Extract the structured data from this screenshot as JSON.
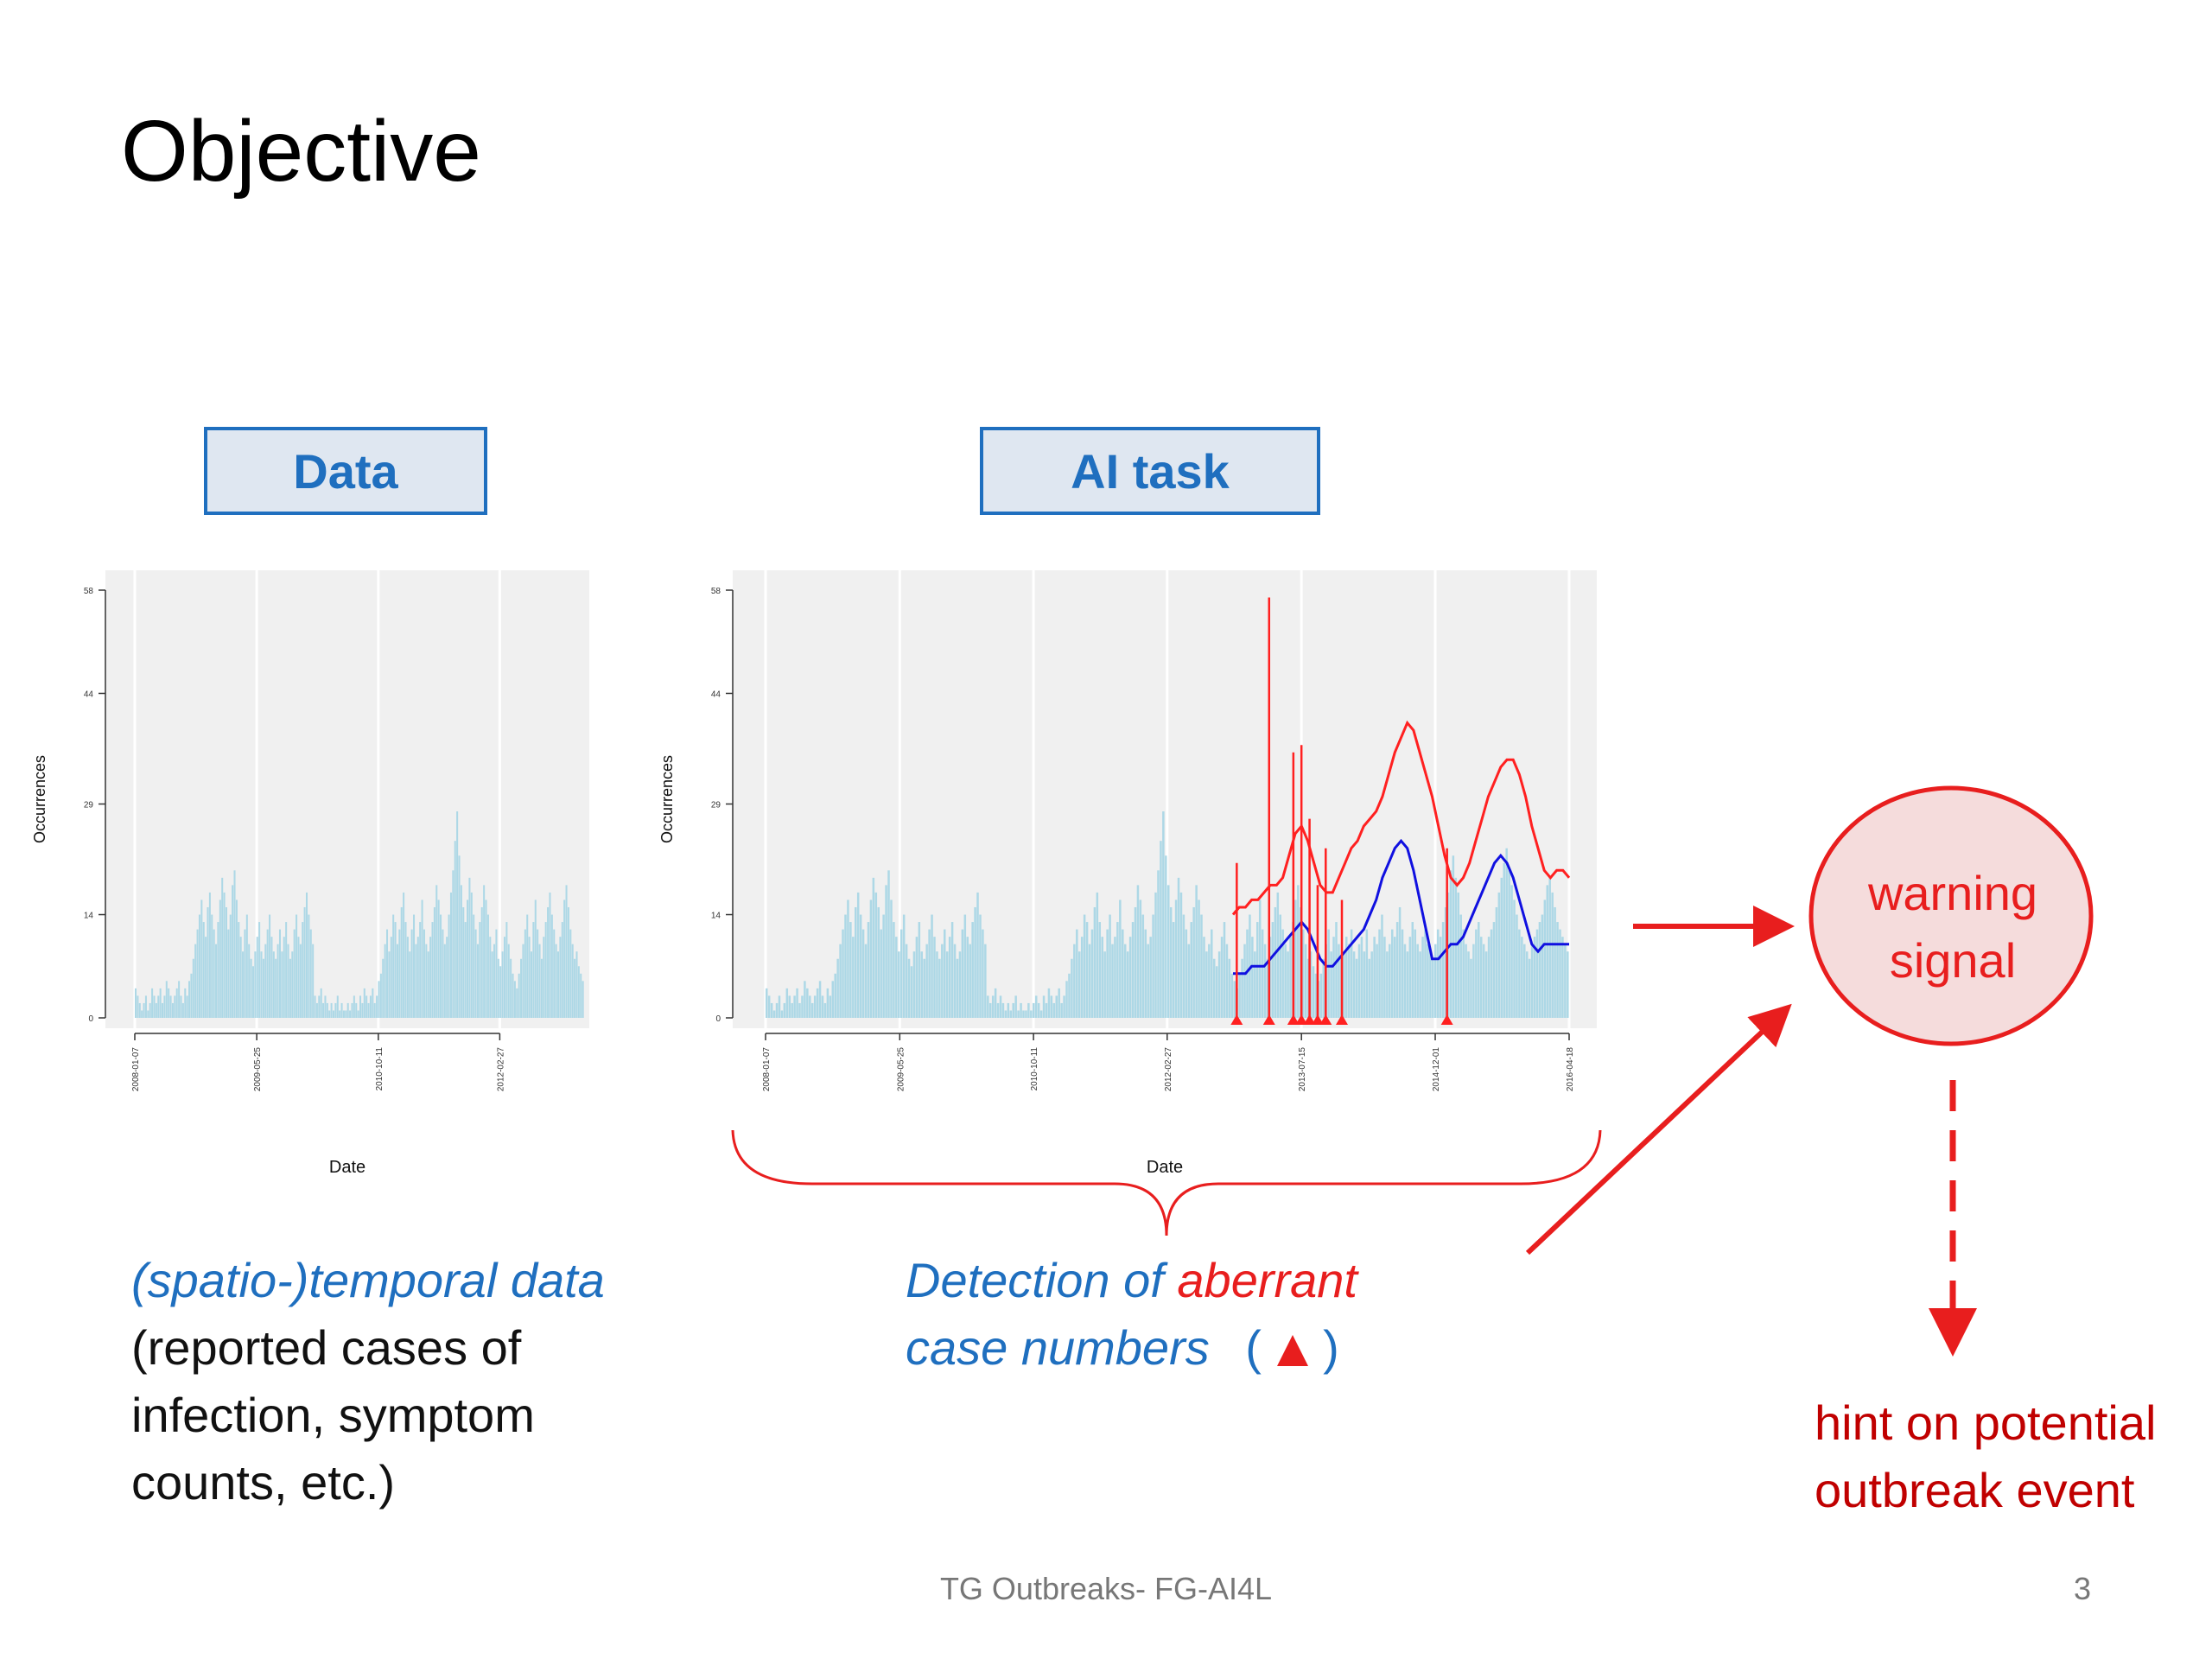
{
  "slide": {
    "title": "Objective",
    "data_label": "Data",
    "ai_label": "AI task",
    "left_caption_italic": "(spatio-)temporal data",
    "left_caption_lines": [
      "(reported cases of",
      "infection, symptom",
      "counts, etc.)"
    ],
    "mid_caption_part1": "Detection of ",
    "mid_caption_part2": "aberrant",
    "mid_caption_line2": "case numbers",
    "mid_caption_paren_open": "(",
    "mid_caption_paren_close": ")",
    "warning_line1": "warning",
    "warning_line2": "signal",
    "hint_line1": "hint on potential",
    "hint_line2": "outbreak event",
    "footer": "TG Outbreaks- FG-AI4L",
    "page_number": "3"
  },
  "colors": {
    "accent_blue": "#1f6fbf",
    "alert_red": "#e81e1e",
    "bar_color": "#add8e6",
    "threshold_red": "#ff2020",
    "expected_blue": "#1010e0",
    "panel_bg": "#f0f0f0"
  },
  "chart_data": [
    {
      "type": "bar",
      "xlabel": "Date",
      "ylabel": "Occurrences",
      "yticks": [
        0,
        14,
        29,
        44,
        58
      ],
      "ylim": [
        0,
        58
      ],
      "xticks": [
        "2008-01-07",
        "2009-05-25",
        "2010-10-11",
        "2012-02-27"
      ],
      "x_range": [
        "2008-01-07",
        "2013-02-11"
      ],
      "grid": true,
      "series": [
        {
          "values": [
            4,
            3,
            2,
            1,
            2,
            3,
            1,
            2,
            4,
            3,
            2,
            3,
            4,
            2,
            3,
            5,
            4,
            3,
            2,
            3,
            4,
            5,
            3,
            2,
            4,
            3,
            5,
            6,
            8,
            10,
            12,
            14,
            16,
            13,
            11,
            15,
            17,
            14,
            12,
            10,
            13,
            16,
            19,
            17,
            15,
            12,
            14,
            18,
            20,
            16,
            13,
            11,
            9,
            12,
            14,
            10,
            8,
            7,
            9,
            11,
            13,
            9,
            8,
            10,
            12,
            14,
            11,
            9,
            8,
            10,
            12,
            9,
            11,
            13,
            10,
            8,
            9,
            12,
            14,
            11,
            10,
            13,
            15,
            17,
            14,
            12,
            10,
            3,
            2,
            3,
            4,
            2,
            3,
            2,
            1,
            2,
            1,
            2,
            3,
            1,
            2,
            1,
            1,
            2,
            1,
            2,
            3,
            2,
            1,
            3,
            2,
            4,
            3,
            2,
            3,
            4,
            2,
            3,
            5,
            6,
            8,
            10,
            12,
            9,
            11,
            14,
            13,
            10,
            12,
            15,
            17,
            13,
            11,
            9,
            12,
            14,
            10,
            11,
            13,
            16,
            12,
            10,
            9,
            11,
            13,
            15,
            18,
            16,
            14,
            12,
            10,
            11,
            14,
            17,
            20,
            24,
            28,
            22,
            18,
            15,
            13,
            16,
            19,
            17,
            14,
            12,
            10,
            13,
            15,
            18,
            16,
            14,
            11,
            9,
            10,
            12,
            8,
            7,
            9,
            11,
            13,
            10,
            8,
            6,
            5,
            4,
            6,
            8,
            10,
            12,
            14,
            11,
            9,
            13,
            16,
            12,
            10,
            8,
            11,
            13,
            15,
            17,
            14,
            12,
            10,
            9,
            11,
            13,
            16,
            18,
            15,
            12,
            10,
            8,
            9,
            7,
            6,
            5
          ]
        }
      ]
    },
    {
      "type": "line",
      "xlabel": "Date",
      "ylabel": "Occurrences",
      "yticks": [
        0,
        14,
        29,
        44,
        58
      ],
      "ylim": [
        0,
        58
      ],
      "xticks": [
        "2008-01-07",
        "2009-05-25",
        "2010-10-11",
        "2012-02-27",
        "2013-07-15",
        "2014-12-01",
        "2016-04-18"
      ],
      "x_range": [
        "2008-01-07",
        "2016-04-18"
      ],
      "grid": true,
      "bars": [
        4,
        3,
        2,
        1,
        2,
        3,
        1,
        2,
        4,
        3,
        2,
        3,
        4,
        2,
        3,
        5,
        4,
        3,
        2,
        3,
        4,
        5,
        3,
        2,
        4,
        3,
        5,
        6,
        8,
        10,
        12,
        14,
        16,
        13,
        11,
        15,
        17,
        14,
        12,
        10,
        13,
        16,
        19,
        17,
        15,
        12,
        14,
        18,
        20,
        16,
        13,
        11,
        9,
        12,
        14,
        10,
        8,
        7,
        9,
        11,
        13,
        9,
        8,
        10,
        12,
        14,
        11,
        9,
        8,
        10,
        12,
        9,
        11,
        13,
        10,
        8,
        9,
        12,
        14,
        11,
        10,
        13,
        15,
        17,
        14,
        12,
        10,
        3,
        2,
        3,
        4,
        2,
        3,
        2,
        1,
        2,
        1,
        2,
        3,
        1,
        2,
        1,
        1,
        2,
        1,
        2,
        3,
        2,
        1,
        3,
        2,
        4,
        3,
        2,
        3,
        4,
        2,
        3,
        5,
        6,
        8,
        10,
        12,
        9,
        11,
        14,
        13,
        10,
        12,
        15,
        17,
        13,
        11,
        9,
        12,
        14,
        10,
        11,
        13,
        16,
        12,
        10,
        9,
        11,
        13,
        15,
        18,
        16,
        14,
        12,
        10,
        11,
        14,
        17,
        20,
        24,
        28,
        22,
        18,
        15,
        13,
        16,
        19,
        17,
        14,
        12,
        10,
        13,
        15,
        18,
        16,
        14,
        11,
        9,
        10,
        12,
        8,
        7,
        9,
        11,
        13,
        10,
        8,
        6,
        5,
        4,
        6,
        8,
        10,
        12,
        14,
        11,
        9,
        13,
        16,
        12,
        10,
        8,
        11,
        13,
        15,
        17,
        14,
        12,
        10,
        9,
        11,
        13,
        16,
        18,
        15,
        12,
        10,
        8,
        9,
        7,
        6,
        5,
        6,
        8,
        10,
        12,
        9,
        11,
        13,
        10,
        8,
        9,
        11,
        10,
        12,
        9,
        8,
        10,
        11,
        9,
        12,
        8,
        9,
        11,
        10,
        12,
        14,
        11,
        9,
        10,
        12,
        11,
        13,
        15,
        12,
        10,
        9,
        11,
        13,
        12,
        10,
        9,
        11,
        12,
        10,
        9,
        8,
        10,
        12,
        11,
        13,
        15,
        17,
        20,
        22,
        19,
        17,
        14,
        12,
        10,
        9,
        8,
        10,
        12,
        13,
        11,
        10,
        9,
        11,
        12,
        13,
        15,
        17,
        19,
        21,
        23,
        20,
        18,
        16,
        14,
        12,
        11,
        10,
        9,
        8,
        10,
        11,
        12,
        13,
        14,
        16,
        18,
        19,
        17,
        15,
        13,
        12,
        11,
        10,
        9
      ],
      "series": [
        {
          "values": [
            14,
            15,
            15,
            16,
            16,
            17,
            18,
            18,
            19,
            22,
            25,
            26,
            24,
            21,
            18,
            17,
            17,
            19,
            21,
            23,
            24,
            26,
            27,
            28,
            30,
            33,
            36,
            38,
            40,
            39,
            36,
            33,
            30,
            26,
            22,
            19,
            18,
            19,
            21,
            24,
            27,
            30,
            32,
            34,
            35,
            35,
            33,
            30,
            26,
            23,
            20,
            19,
            20,
            20,
            19
          ]
        },
        {
          "values": [
            6,
            6,
            6,
            7,
            7,
            7,
            8,
            9,
            10,
            11,
            12,
            13,
            12,
            10,
            8,
            7,
            7,
            8,
            9,
            10,
            11,
            12,
            14,
            16,
            19,
            21,
            23,
            24,
            23,
            20,
            16,
            12,
            8,
            8,
            9,
            10,
            10,
            11,
            13,
            15,
            17,
            19,
            21,
            22,
            21,
            19,
            16,
            13,
            10,
            9,
            10,
            10,
            10,
            10,
            10
          ]
        }
      ],
      "alarms": [
        "2012-11",
        "2013-03",
        "2013-06",
        "2013-07",
        "2013-08",
        "2013-09",
        "2013-10",
        "2013-12",
        "2015-01"
      ],
      "alarm_spikes": [
        21,
        57,
        36,
        37,
        27,
        18,
        23,
        16,
        23
      ]
    }
  ]
}
